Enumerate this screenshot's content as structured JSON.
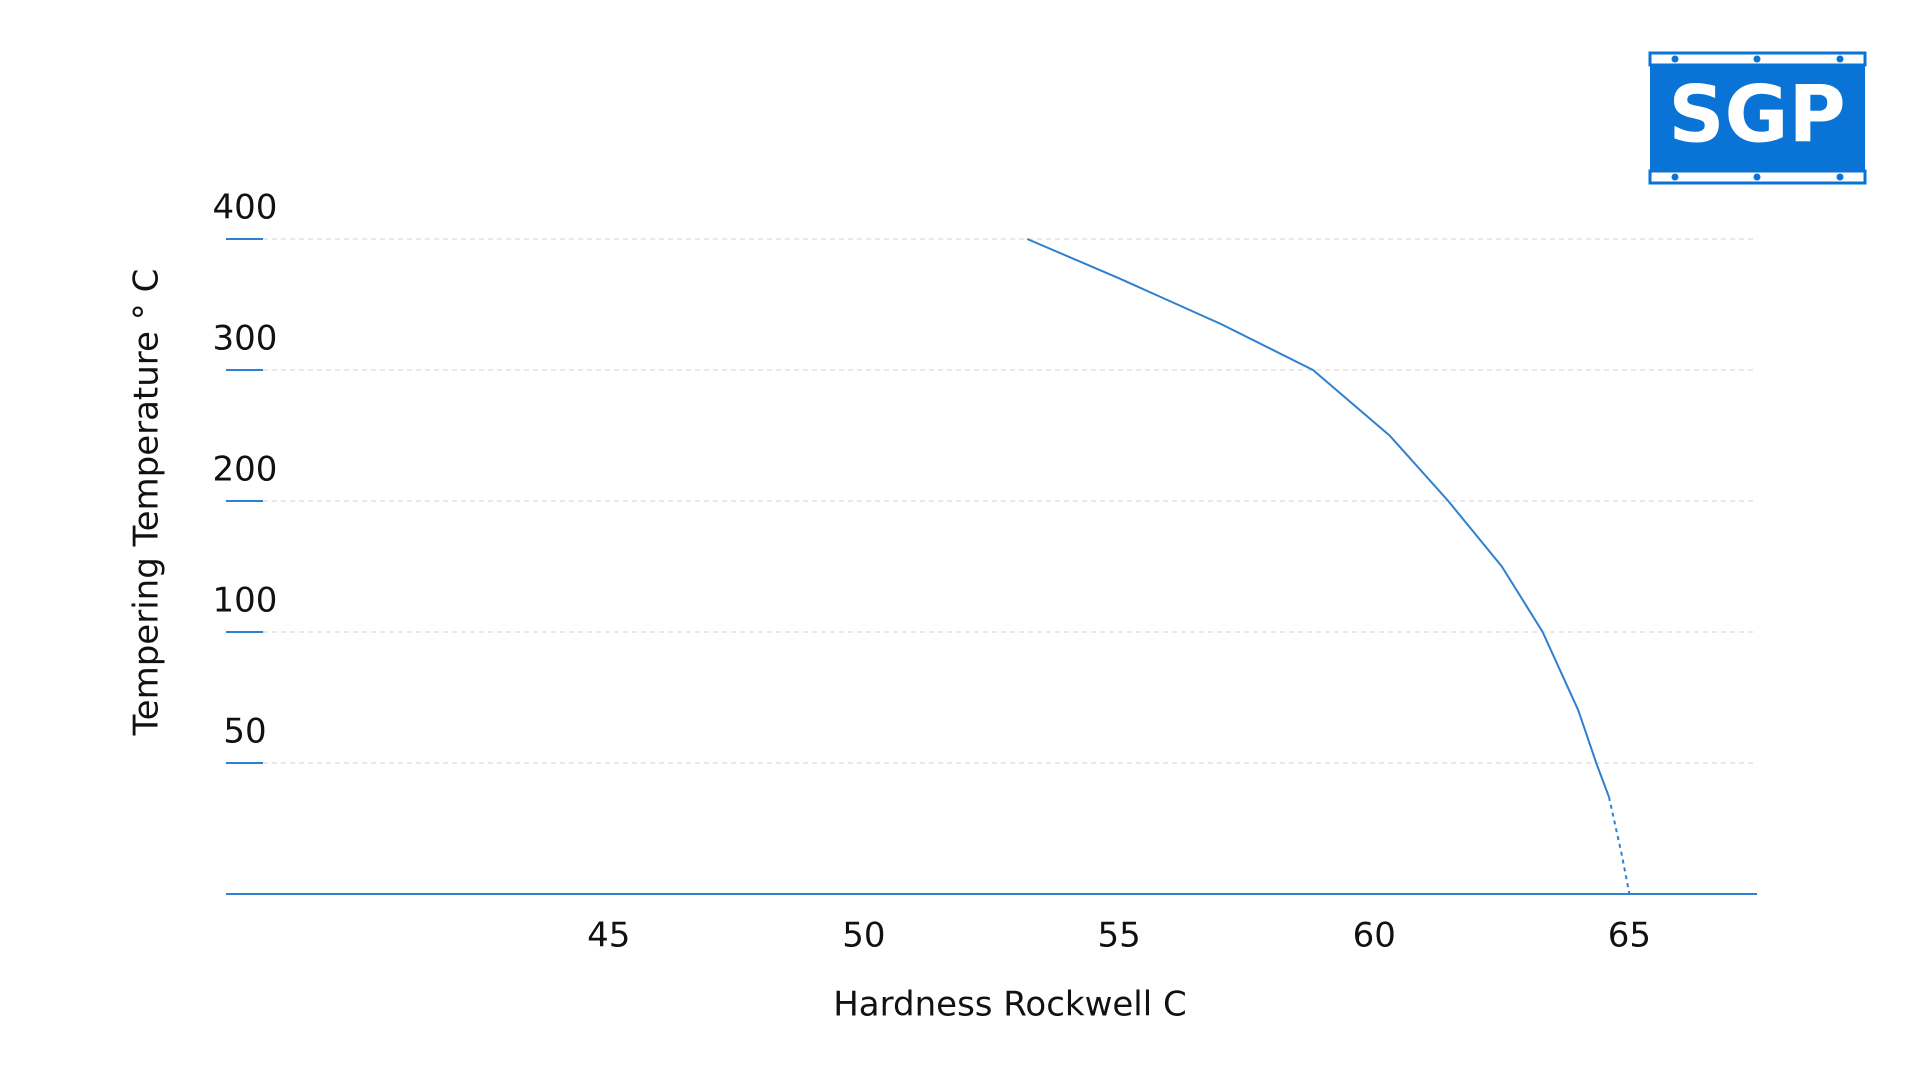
{
  "logo": "SGP",
  "chart_data": {
    "type": "line",
    "x_label": "Hardness Rockwell C",
    "y_label": "Tempering Temperature  ° C",
    "xlim": [
      37.5,
      67.5
    ],
    "xticks": [
      45,
      50,
      55,
      60,
      65
    ],
    "ylim": [
      0,
      400
    ],
    "yticks": [
      50,
      100,
      200,
      300,
      400
    ],
    "grid": true,
    "series": [
      {
        "color": "#2f7fd0",
        "dash": false,
        "x": [
          53.2,
          55,
          57,
          58.8,
          60.3,
          61.45,
          62.5,
          63.3,
          64.0,
          64.35,
          64.6
        ],
        "values": [
          400,
          370,
          335,
          300,
          250,
          200,
          150,
          100,
          70,
          50,
          37
        ]
      },
      {
        "color": "#2f7fd0",
        "dash": true,
        "x": [
          64.6,
          64.85,
          65
        ],
        "values": [
          37,
          15,
          0
        ]
      }
    ]
  }
}
